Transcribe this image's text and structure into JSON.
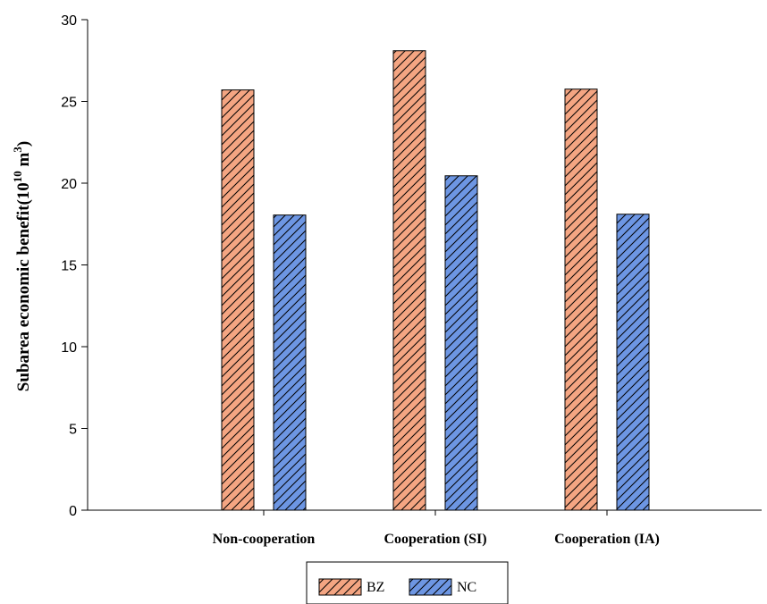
{
  "chart_data": {
    "type": "bar",
    "categories": [
      "Non-cooperation",
      "Cooperation (SI)",
      "Cooperation (IA)"
    ],
    "series": [
      {
        "name": "BZ",
        "values": [
          25.7,
          28.1,
          25.75
        ],
        "color": "#f4a582",
        "pattern": "diagonal-hatch"
      },
      {
        "name": "NC",
        "values": [
          18.05,
          20.45,
          18.1
        ],
        "color": "#6d96e3",
        "pattern": "diagonal-hatch"
      }
    ],
    "title": "",
    "xlabel": "",
    "ylabel": {
      "main": "Subarea economic benefit(10",
      "sup1": "10",
      "mid": " m",
      "sup2": "3",
      "end": ")"
    },
    "ylim": [
      0,
      30
    ],
    "yticks": [
      0,
      5,
      10,
      15,
      20,
      25,
      30
    ],
    "grid": false,
    "legend_position": "bottom-center"
  }
}
